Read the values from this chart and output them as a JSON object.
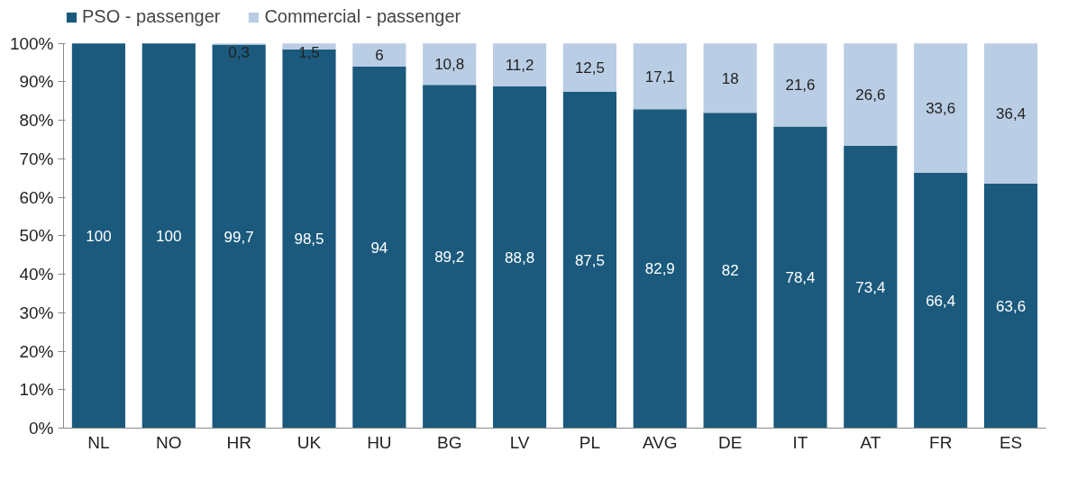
{
  "chart_data": {
    "type": "bar",
    "stacked": true,
    "categories": [
      "NL",
      "NO",
      "HR",
      "UK",
      "HU",
      "BG",
      "LV",
      "PL",
      "AVG",
      "DE",
      "IT",
      "AT",
      "FR",
      "ES"
    ],
    "series": [
      {
        "name": "PSO - passenger",
        "color": "#1b5a7d",
        "values": [
          100,
          100,
          99.7,
          98.5,
          94,
          89.2,
          88.8,
          87.5,
          82.9,
          82,
          78.4,
          73.4,
          66.4,
          63.6
        ],
        "value_labels": [
          "100",
          "100",
          "99,7",
          "98,5",
          "94",
          "89,2",
          "88,8",
          "87,5",
          "82,9",
          "82",
          "78,4",
          "73,4",
          "66,4",
          "63,6"
        ]
      },
      {
        "name": "Commercial - passenger",
        "color": "#b9cde4",
        "values": [
          0,
          0,
          0.3,
          1.5,
          6,
          10.8,
          11.2,
          12.5,
          17.1,
          18,
          21.6,
          26.6,
          33.6,
          36.4
        ],
        "value_labels": [
          null,
          null,
          "0,3",
          "1,5",
          "6",
          "10,8",
          "11,2",
          "12,5",
          "17,1",
          "18",
          "21,6",
          "26,6",
          "33,6",
          "36,4"
        ]
      }
    ],
    "ylim": [
      0,
      100
    ],
    "yticks": [
      {
        "value": 0,
        "label": "0%"
      },
      {
        "value": 10,
        "label": "10%"
      },
      {
        "value": 20,
        "label": "20%"
      },
      {
        "value": 30,
        "label": "30%"
      },
      {
        "value": 40,
        "label": "40%"
      },
      {
        "value": 50,
        "label": "50%"
      },
      {
        "value": 60,
        "label": "60%"
      },
      {
        "value": 70,
        "label": "70%"
      },
      {
        "value": 80,
        "label": "80%"
      },
      {
        "value": 90,
        "label": "90%"
      },
      {
        "value": 100,
        "label": "100%"
      }
    ],
    "grid": false,
    "legend": "top left"
  }
}
